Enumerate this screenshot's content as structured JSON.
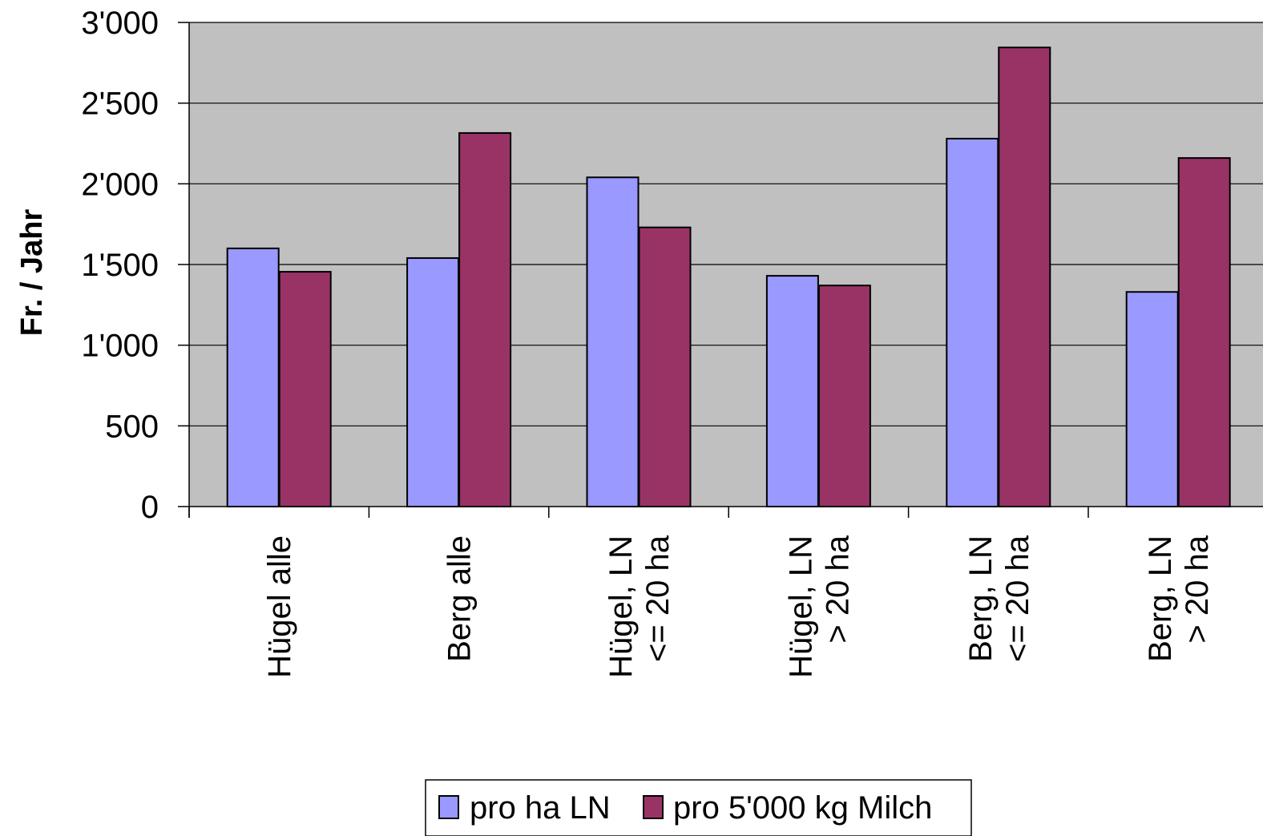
{
  "chart_data": {
    "type": "bar",
    "title": "",
    "xlabel": "",
    "ylabel": "Fr. / Jahr",
    "ylim": [
      0,
      3000
    ],
    "yticks": [
      0,
      500,
      1000,
      1500,
      2000,
      2500,
      3000
    ],
    "ytick_labels": [
      "0",
      "500",
      "1'000",
      "1'500",
      "2'000",
      "2'500",
      "3'000"
    ],
    "categories": [
      [
        "Hügel alle"
      ],
      [
        "Berg alle"
      ],
      [
        "Hügel, LN",
        "<= 20 ha"
      ],
      [
        "Hügel, LN",
        "> 20 ha"
      ],
      [
        "Berg, LN",
        "<= 20 ha"
      ],
      [
        "Berg, LN",
        "> 20 ha"
      ]
    ],
    "series": [
      {
        "name": "pro ha LN",
        "color": "#9999ff",
        "values": [
          1600,
          1540,
          2040,
          1430,
          2280,
          1330
        ]
      },
      {
        "name": "pro 5'000 kg Milch",
        "color": "#993366",
        "values": [
          1455,
          2315,
          1730,
          1370,
          2845,
          2160
        ]
      }
    ],
    "plot_background": "#c0c0c0",
    "grid": true,
    "legend": "bottom-center"
  }
}
